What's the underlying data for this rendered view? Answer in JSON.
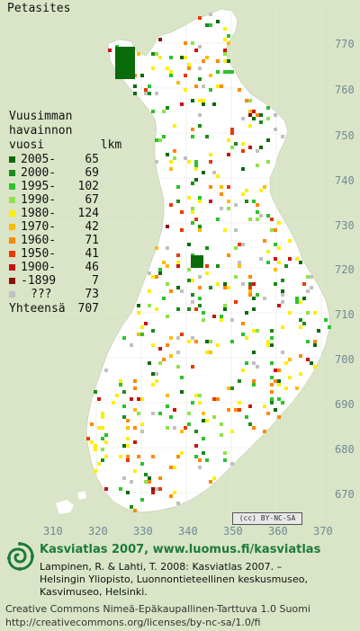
{
  "title": "Petasites",
  "legend": {
    "heading": [
      "Vuusimman",
      "havainnon",
      "vuosi        lkm"
    ],
    "rows": [
      {
        "label": "2005-",
        "count": "65",
        "color": "#0a6b0a"
      },
      {
        "label": "2000-",
        "count": "69",
        "color": "#1a8c1a"
      },
      {
        "label": "1995-",
        "count": "102",
        "color": "#2bc22b"
      },
      {
        "label": "1990-",
        "count": "67",
        "color": "#8fe24a"
      },
      {
        "label": "1980-",
        "count": "124",
        "color": "#ffee00"
      },
      {
        "label": "1970-",
        "count": "42",
        "color": "#ffbb00"
      },
      {
        "label": "1960-",
        "count": "71",
        "color": "#ff8800"
      },
      {
        "label": "1950-",
        "count": "41",
        "color": "#e83a00"
      },
      {
        "label": "1900-",
        "count": "46",
        "color": "#cc1111"
      },
      {
        "label": "-1899",
        "count": "7",
        "color": "#8a1010"
      },
      {
        "label": "???",
        "count": "73",
        "color": "#c0c0c0"
      }
    ],
    "total_label": "Yhteensä",
    "total_count": "707"
  },
  "axes": {
    "y_ticks": [
      "770",
      "760",
      "750",
      "740",
      "730",
      "720",
      "710",
      "700",
      "690",
      "680",
      "670"
    ],
    "x_ticks": [
      "310",
      "320",
      "330",
      "340",
      "350",
      "360",
      "370"
    ]
  },
  "license_badge": "(cc) BY-NC-SA",
  "footer": {
    "title": "Kasviatlas 2007, www.luomus.fi/kasviatlas",
    "citation": [
      "Lampinen, R. & Lahti, T. 2008: Kasviatlas 2007. –",
      "Helsingin Yliopisto, Luonnontieteellinen keskusmuseo,",
      "Kasvimuseo, Helsinki."
    ],
    "license": [
      "Creative Commons Nimeä-Epäkaupallinen-Tarttuva 1.0 Suomi",
      "http://creativecommons.org/licenses/by-nc-sa/1.0/fi"
    ]
  }
}
